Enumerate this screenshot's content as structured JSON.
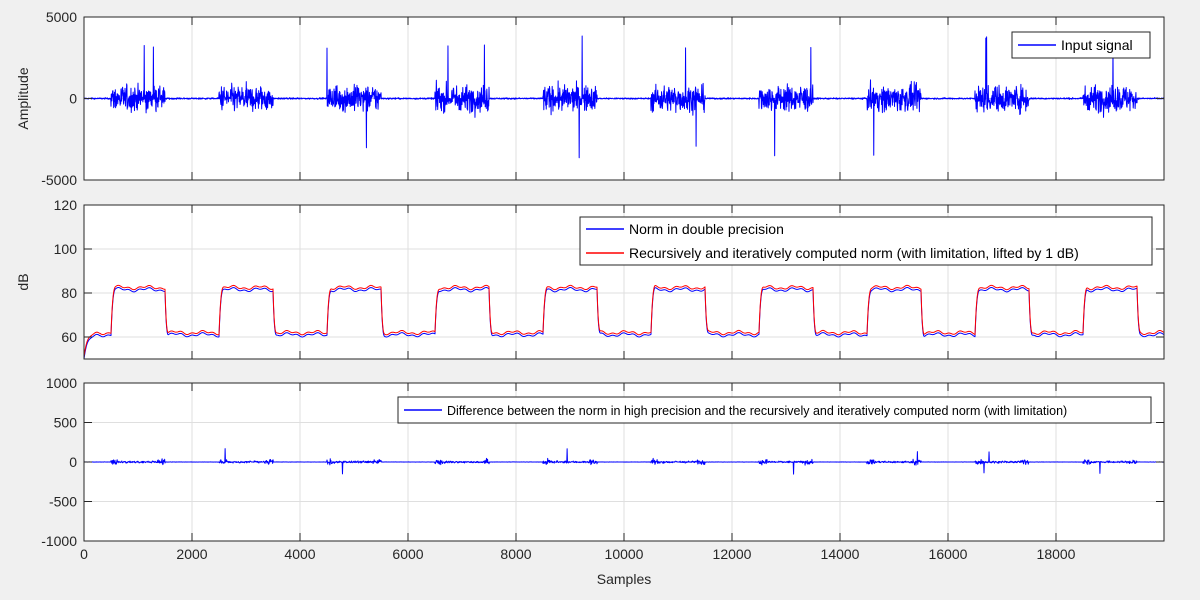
{
  "chart_data": [
    {
      "type": "line",
      "xlabel": "",
      "ylabel": "Amplitude",
      "xlim": [
        0,
        20000
      ],
      "ylim": [
        -5000,
        5000
      ],
      "xticks": [
        0,
        2000,
        4000,
        6000,
        8000,
        10000,
        12000,
        14000,
        16000,
        18000
      ],
      "yticks": [
        -5000,
        0,
        5000
      ],
      "show_xtick_labels": false,
      "grid": true,
      "legend_position": "top-right",
      "series": [
        {
          "name": "Input signal",
          "color": "#0000ff",
          "style": "noise-bursts",
          "baseline_amplitude": 150,
          "burst_amplitude": 2400,
          "burst_peak": 3900,
          "bursts": [
            [
              500,
              1500
            ],
            [
              2500,
              3500
            ],
            [
              4500,
              5500
            ],
            [
              6500,
              7500
            ],
            [
              8500,
              9500
            ],
            [
              10500,
              11500
            ],
            [
              12500,
              13500
            ],
            [
              14500,
              15500
            ],
            [
              16500,
              17500
            ],
            [
              18500,
              19500
            ]
          ]
        }
      ]
    },
    {
      "type": "line",
      "xlabel": "",
      "ylabel": "dB",
      "xlim": [
        0,
        20000
      ],
      "ylim": [
        50,
        120
      ],
      "xticks": [
        0,
        2000,
        4000,
        6000,
        8000,
        10000,
        12000,
        14000,
        16000,
        18000
      ],
      "yticks": [
        60,
        80,
        100,
        120
      ],
      "show_xtick_labels": false,
      "grid": true,
      "legend_position": "top-right",
      "series": [
        {
          "name": "Norm in double precision",
          "color": "#0000ff",
          "style": "step-level",
          "low_level": 61,
          "high_level": 81.5,
          "start_level": 50,
          "offset_db": 0,
          "bursts": [
            [
              500,
              1500
            ],
            [
              2500,
              3500
            ],
            [
              4500,
              5500
            ],
            [
              6500,
              7500
            ],
            [
              8500,
              9500
            ],
            [
              10500,
              11500
            ],
            [
              12500,
              13500
            ],
            [
              14500,
              15500
            ],
            [
              16500,
              17500
            ],
            [
              18500,
              19500
            ]
          ]
        },
        {
          "name": "Recursively and iteratively computed norm (with limitation, lifted by 1 dB)",
          "color": "#ff0000",
          "style": "step-level",
          "low_level": 61,
          "high_level": 81.5,
          "start_level": 50,
          "offset_db": 1,
          "bursts": [
            [
              500,
              1500
            ],
            [
              2500,
              3500
            ],
            [
              4500,
              5500
            ],
            [
              6500,
              7500
            ],
            [
              8500,
              9500
            ],
            [
              10500,
              11500
            ],
            [
              12500,
              13500
            ],
            [
              14500,
              15500
            ],
            [
              16500,
              17500
            ],
            [
              18500,
              19500
            ]
          ]
        }
      ]
    },
    {
      "type": "line",
      "xlabel": "Samples",
      "ylabel": "",
      "xlim": [
        0,
        20000
      ],
      "ylim": [
        -1000,
        1000
      ],
      "xticks": [
        0,
        2000,
        4000,
        6000,
        8000,
        10000,
        12000,
        14000,
        16000,
        18000
      ],
      "yticks": [
        -1000,
        -500,
        0,
        500,
        1000
      ],
      "show_xtick_labels": true,
      "grid": true,
      "legend_position": "top-right",
      "series": [
        {
          "name": "Difference between the norm in high precision and the recursively and iteratively computed norm (with limitation)",
          "color": "#0000ff",
          "style": "difference",
          "typical_amplitude": 60,
          "spike_peak": 170,
          "bursts": [
            [
              500,
              1500
            ],
            [
              2500,
              3500
            ],
            [
              4500,
              5500
            ],
            [
              6500,
              7500
            ],
            [
              8500,
              9500
            ],
            [
              10500,
              11500
            ],
            [
              12500,
              13500
            ],
            [
              14500,
              15500
            ],
            [
              16500,
              17500
            ],
            [
              18500,
              19500
            ]
          ]
        }
      ]
    }
  ]
}
